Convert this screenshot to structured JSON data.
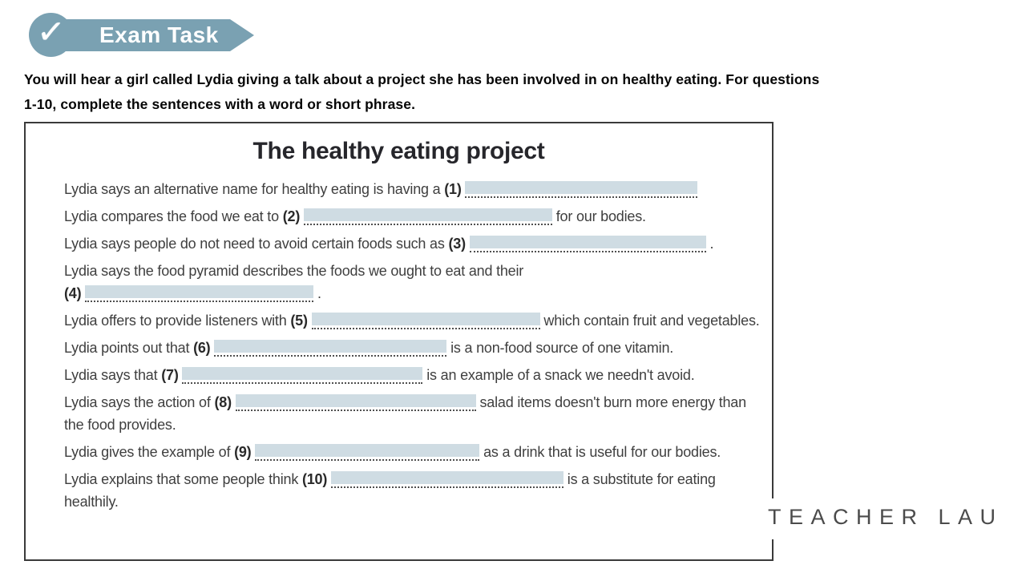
{
  "banner": {
    "label": "Exam Task",
    "check_icon": "✓"
  },
  "instructions": {
    "line1": "You will hear a girl called Lydia giving a talk about a project she has been involved in on healthy eating. For questions",
    "line2": "1-10, complete the sentences with a word or short phrase."
  },
  "worksheet": {
    "title": "The healthy eating project",
    "items": [
      {
        "number": "(1)",
        "before": "Lydia says an alternative name for healthy eating is having a",
        "after": "",
        "blank_width": 290,
        "wrap_before_number": false
      },
      {
        "number": "(2)",
        "before": "Lydia compares the food we eat to",
        "after": "for our bodies.",
        "blank_width": 310,
        "wrap_before_number": false
      },
      {
        "number": "(3)",
        "before": "Lydia says people do not need to avoid certain foods such as",
        "after": ".",
        "blank_width": 295,
        "wrap_before_number": false
      },
      {
        "number": "(4)",
        "before": "Lydia says the food pyramid describes the foods we ought to eat and their",
        "after": ".",
        "blank_width": 285,
        "wrap_before_number": true
      },
      {
        "number": "(5)",
        "before": "Lydia offers to provide listeners with",
        "after": "which contain fruit and vegetables.",
        "blank_width": 285,
        "wrap_before_number": false
      },
      {
        "number": "(6)",
        "before": "Lydia points out that",
        "after": "is a non-food source of one vitamin.",
        "blank_width": 290,
        "wrap_before_number": false
      },
      {
        "number": "(7)",
        "before": "Lydia says that",
        "after": "is an example of a snack we needn't avoid.",
        "blank_width": 300,
        "wrap_before_number": false
      },
      {
        "number": "(8)",
        "before": "Lydia says the action of",
        "after": "salad items doesn't burn more energy than the food provides.",
        "blank_width": 300,
        "wrap_before_number": false
      },
      {
        "number": "(9)",
        "before": "Lydia gives the example of",
        "after": "as a drink that is useful for our bodies.",
        "blank_width": 280,
        "wrap_before_number": false
      },
      {
        "number": "(10)",
        "before": "Lydia explains that some people think",
        "after": "is a substitute for eating healthily.",
        "blank_width": 290,
        "wrap_before_number": false
      }
    ]
  },
  "watermark": {
    "text": "TEACHER LAU"
  },
  "colors": {
    "banner": "#7aa1b2",
    "blank_highlight": "#cfdce3",
    "box_border": "#3a3a3a",
    "body_text": "#3f3f3f",
    "watermark_text": "#4b4b4b"
  }
}
